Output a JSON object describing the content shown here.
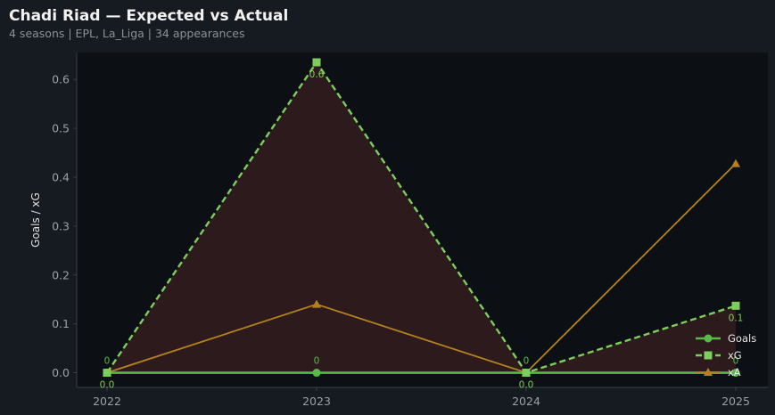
{
  "header": {
    "title": "Chadi Riad — Expected vs Actual",
    "subtitle": "4 seasons | EPL, La_Liga | 34 appearances"
  },
  "colors": {
    "background": "#161a21",
    "plot_background": "#0c0f14",
    "goals": "#58b947",
    "xg": "#7ccf5c",
    "xa": "#b5811e",
    "fill": "#2e1b1e"
  },
  "chart_data": {
    "type": "line",
    "categories": [
      "2022",
      "2023",
      "2024",
      "2025"
    ],
    "ylabel": "Goals / xG",
    "xlabel": "",
    "ylim": [
      -0.03,
      0.655
    ],
    "yticks": [
      "0.0",
      "0.1",
      "0.2",
      "0.3",
      "0.4",
      "0.5",
      "0.6"
    ],
    "ytick_values": [
      0,
      0.1,
      0.2,
      0.3,
      0.4,
      0.5,
      0.6
    ],
    "grid": false,
    "legend_position": "bottom-right",
    "series": [
      {
        "name": "Goals",
        "values": [
          0,
          0,
          0,
          0
        ],
        "labels": [
          "0",
          "0",
          "0",
          "0"
        ],
        "marker": "circle",
        "style": "solid"
      },
      {
        "name": "xG",
        "values": [
          0,
          0.635,
          0,
          0.137
        ],
        "labels": [
          "0.0",
          "0.6",
          "0.0",
          "0.1"
        ],
        "marker": "square",
        "style": "dashed"
      },
      {
        "name": "xA",
        "values": [
          0,
          0.14,
          0,
          0.428
        ],
        "labels": [],
        "marker": "triangle",
        "style": "solid"
      }
    ]
  }
}
